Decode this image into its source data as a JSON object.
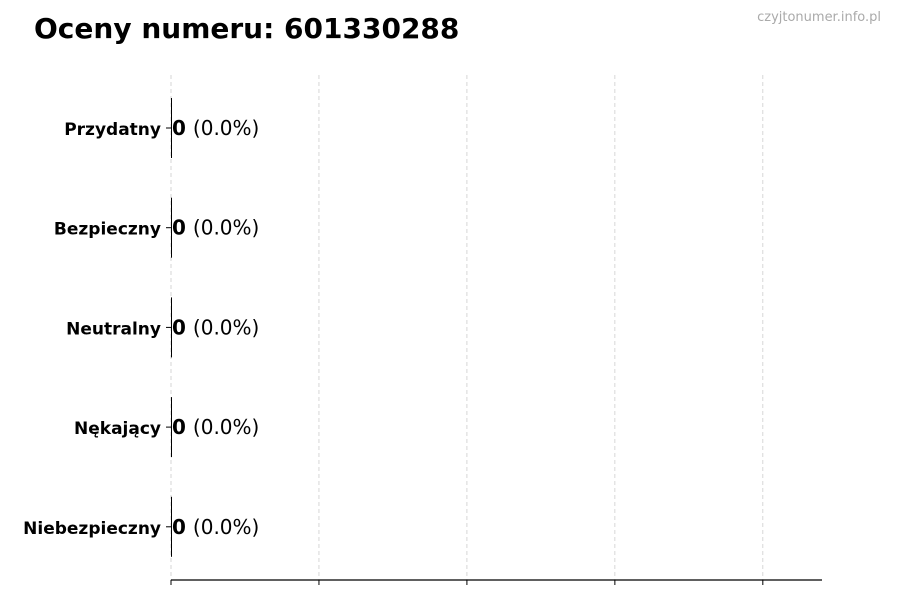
{
  "chart_data": {
    "type": "bar",
    "orientation": "horizontal",
    "title": "Oceny numeru: 601330288",
    "watermark": "czyjtonumer.info.pl",
    "categories": [
      "Przydatny",
      "Bezpieczny",
      "Neutralny",
      "Nękający",
      "Niebezpieczny"
    ],
    "values": [
      0,
      0,
      0,
      0,
      0
    ],
    "labels": [
      {
        "count": "0",
        "percent": "(0.0%)"
      },
      {
        "count": "0",
        "percent": "(0.0%)"
      },
      {
        "count": "0",
        "percent": "(0.0%)"
      },
      {
        "count": "0",
        "percent": "(0.0%)"
      },
      {
        "count": "0",
        "percent": "(0.0%)"
      }
    ],
    "xlim": [
      0,
      4.4
    ],
    "xticks": [
      0,
      1,
      2,
      3,
      4
    ],
    "xtick_labels_shown": false,
    "grid": "x-dashed",
    "colors": {
      "bar": "#000000",
      "grid": "#cccccc",
      "watermark": "#aaaaaa"
    }
  }
}
